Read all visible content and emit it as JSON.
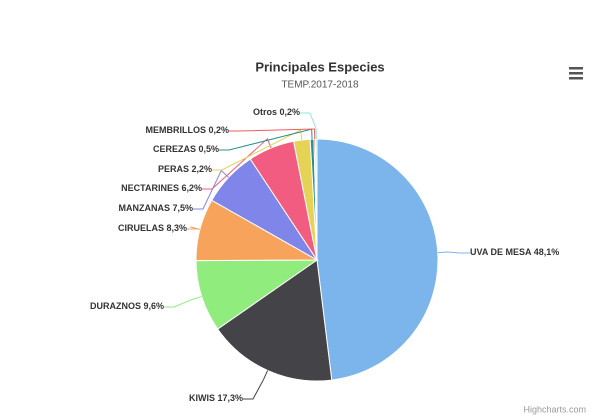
{
  "chart_data": {
    "type": "pie",
    "title": "Principales Especies",
    "subtitle": "TEMP.2017-2018",
    "categories": [
      "UVA DE MESA",
      "KIWIS",
      "DURAZNOS",
      "CIRUELAS",
      "MANZANAS",
      "NECTARINES",
      "PERAS",
      "CEREZAS",
      "MEMBRILLOS",
      "Otros"
    ],
    "values": [
      48.1,
      17.3,
      9.6,
      8.3,
      7.5,
      6.2,
      2.2,
      0.5,
      0.2,
      0.2
    ],
    "value_labels": [
      "48,1%",
      "17,3%",
      "9,6%",
      "8,3%",
      "7,5%",
      "6,2%",
      "2,2%",
      "0,5%",
      "0,2%",
      "0,2%"
    ],
    "colors": [
      "#7cb5ec",
      "#434348",
      "#90ed7d",
      "#f7a35c",
      "#8085e9",
      "#f15c80",
      "#e4d354",
      "#2b908f",
      "#f45b5b",
      "#91e8e1"
    ],
    "credits": "Highcharts.com"
  }
}
